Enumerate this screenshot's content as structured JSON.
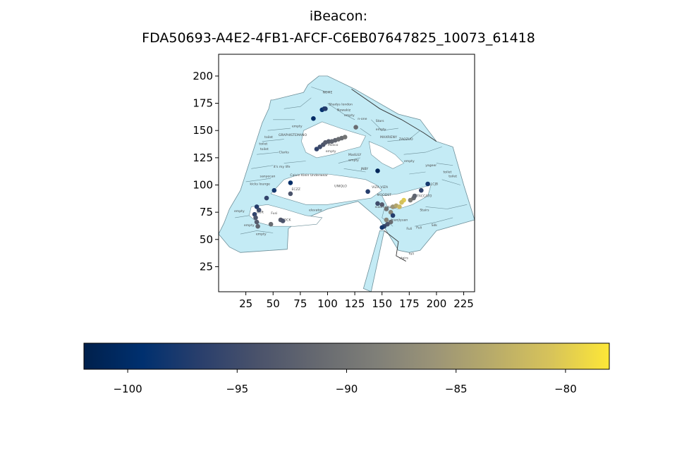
{
  "title_line1": "iBeacon:",
  "title_line2": "FDA50693-A4E2-4FB1-AFCF-C6EB07647825_10073_61418",
  "colors": {
    "floor_fill": "#c4ebf5",
    "floor_edge": "#6d8f99",
    "outline": "#333333",
    "colormap": [
      "#00204c",
      "#00306f",
      "#2a3f6c",
      "#4b536b",
      "#666970",
      "#7f7f78",
      "#9b9477",
      "#b8ab6a",
      "#d7c35a",
      "#fde737"
    ]
  },
  "chart_data": {
    "type": "scatter",
    "xlim": [
      0,
      235
    ],
    "ylim": [
      2,
      220
    ],
    "xticks": [
      25,
      50,
      75,
      100,
      125,
      150,
      175,
      200,
      225
    ],
    "yticks": [
      25,
      50,
      75,
      100,
      125,
      150,
      175,
      200
    ],
    "colorbar": {
      "min": -102,
      "max": -78,
      "ticks": [
        -100,
        -95,
        -90,
        -85,
        -80
      ]
    },
    "points": [
      {
        "x": 87,
        "y": 161,
        "v": -100
      },
      {
        "x": 95,
        "y": 169,
        "v": -99
      },
      {
        "x": 97,
        "y": 170,
        "v": -98
      },
      {
        "x": 98,
        "y": 170,
        "v": -97
      },
      {
        "x": 90,
        "y": 133,
        "v": -96
      },
      {
        "x": 93,
        "y": 135,
        "v": -95
      },
      {
        "x": 96,
        "y": 137,
        "v": -94
      },
      {
        "x": 98,
        "y": 139,
        "v": -93
      },
      {
        "x": 101,
        "y": 140,
        "v": -93
      },
      {
        "x": 104,
        "y": 140,
        "v": -92
      },
      {
        "x": 107,
        "y": 141,
        "v": -92
      },
      {
        "x": 110,
        "y": 142,
        "v": -91
      },
      {
        "x": 113,
        "y": 143,
        "v": -91
      },
      {
        "x": 116,
        "y": 144,
        "v": -90
      },
      {
        "x": 126,
        "y": 153,
        "v": -91
      },
      {
        "x": 146,
        "y": 113,
        "v": -101
      },
      {
        "x": 66,
        "y": 102,
        "v": -100
      },
      {
        "x": 51,
        "y": 95,
        "v": -98
      },
      {
        "x": 44,
        "y": 88,
        "v": -96
      },
      {
        "x": 66,
        "y": 92,
        "v": -94
      },
      {
        "x": 35,
        "y": 80,
        "v": -97
      },
      {
        "x": 37,
        "y": 77,
        "v": -95
      },
      {
        "x": 33,
        "y": 73,
        "v": -96
      },
      {
        "x": 34,
        "y": 70,
        "v": -94
      },
      {
        "x": 35,
        "y": 66,
        "v": -93
      },
      {
        "x": 36,
        "y": 62,
        "v": -92
      },
      {
        "x": 48,
        "y": 64,
        "v": -91
      },
      {
        "x": 57,
        "y": 68,
        "v": -93
      },
      {
        "x": 59,
        "y": 67,
        "v": -94
      },
      {
        "x": 137,
        "y": 94,
        "v": -97
      },
      {
        "x": 146,
        "y": 83,
        "v": -95
      },
      {
        "x": 150,
        "y": 82,
        "v": -93
      },
      {
        "x": 154,
        "y": 78,
        "v": -90
      },
      {
        "x": 158,
        "y": 75,
        "v": -88
      },
      {
        "x": 160,
        "y": 80,
        "v": -86
      },
      {
        "x": 163,
        "y": 81,
        "v": -84
      },
      {
        "x": 166,
        "y": 80,
        "v": -82
      },
      {
        "x": 170,
        "y": 86,
        "v": -80
      },
      {
        "x": 168,
        "y": 84,
        "v": -81
      },
      {
        "x": 176,
        "y": 86,
        "v": -89
      },
      {
        "x": 179,
        "y": 88,
        "v": -91
      },
      {
        "x": 180,
        "y": 90,
        "v": -92
      },
      {
        "x": 186,
        "y": 95,
        "v": -96
      },
      {
        "x": 192,
        "y": 101,
        "v": -98
      },
      {
        "x": 160,
        "y": 72,
        "v": -97
      },
      {
        "x": 158,
        "y": 66,
        "v": -91
      },
      {
        "x": 155,
        "y": 64,
        "v": -94
      },
      {
        "x": 152,
        "y": 62,
        "v": -96
      },
      {
        "x": 150,
        "y": 61,
        "v": -98
      },
      {
        "x": 154,
        "y": 68,
        "v": -88
      }
    ]
  },
  "room_labels": [
    {
      "text": "NOME",
      "x": 100,
      "y": 184
    },
    {
      "text": "Shadys london",
      "x": 112,
      "y": 173
    },
    {
      "text": "Newakiz",
      "x": 115,
      "y": 168
    },
    {
      "text": "empty",
      "x": 120,
      "y": 163
    },
    {
      "text": "n-one",
      "x": 132,
      "y": 160
    },
    {
      "text": "Stars",
      "x": 148,
      "y": 158
    },
    {
      "text": "empty",
      "x": 149,
      "y": 150
    },
    {
      "text": "MAXRIENY",
      "x": 156,
      "y": 143
    },
    {
      "text": "ZAOZUO",
      "x": 172,
      "y": 141
    },
    {
      "text": "GRAPHISTEMANO",
      "x": 68,
      "y": 145
    },
    {
      "text": "empty",
      "x": 72,
      "y": 153
    },
    {
      "text": "toilet",
      "x": 46,
      "y": 143
    },
    {
      "text": "toilet",
      "x": 41,
      "y": 137
    },
    {
      "text": "toilet",
      "x": 42,
      "y": 132
    },
    {
      "text": "Clarks",
      "x": 60,
      "y": 129
    },
    {
      "text": "Mosco",
      "x": 105,
      "y": 136
    },
    {
      "text": "empty",
      "x": 103,
      "y": 130
    },
    {
      "text": "MadLILY",
      "x": 125,
      "y": 127
    },
    {
      "text": "empty",
      "x": 124,
      "y": 122
    },
    {
      "text": "empty",
      "x": 175,
      "y": 121
    },
    {
      "text": "yageer",
      "x": 195,
      "y": 117
    },
    {
      "text": "JNBY",
      "x": 134,
      "y": 114
    },
    {
      "text": "toilet",
      "x": 210,
      "y": 111
    },
    {
      "text": "toilet",
      "x": 215,
      "y": 107
    },
    {
      "text": "it's my life",
      "x": 58,
      "y": 116
    },
    {
      "text": "sanyecan",
      "x": 45,
      "y": 107
    },
    {
      "text": "Calvin Klein Underwear",
      "x": 83,
      "y": 108
    },
    {
      "text": "kicks lounge",
      "x": 38,
      "y": 100
    },
    {
      "text": "UNIQLO",
      "x": 112,
      "y": 98
    },
    {
      "text": "VIZA VIZA",
      "x": 148,
      "y": 97
    },
    {
      "text": "ECZZ",
      "x": 71,
      "y": 95
    },
    {
      "text": "MOODST",
      "x": 152,
      "y": 90
    },
    {
      "text": "STACCATO",
      "x": 188,
      "y": 89
    },
    {
      "text": "LCJB",
      "x": 198,
      "y": 100
    },
    {
      "text": "xiaomuxiang",
      "x": 153,
      "y": 79
    },
    {
      "text": "elevator",
      "x": 89,
      "y": 76
    },
    {
      "text": "empty",
      "x": 19,
      "y": 75
    },
    {
      "text": "stuft",
      "x": 38,
      "y": 74
    },
    {
      "text": "Fusi",
      "x": 51,
      "y": 73
    },
    {
      "text": "Stairs",
      "x": 189,
      "y": 76
    },
    {
      "text": "DOCK",
      "x": 62,
      "y": 67
    },
    {
      "text": "empty",
      "x": 28,
      "y": 62
    },
    {
      "text": "bianjiyuan",
      "x": 166,
      "y": 67
    },
    {
      "text": "empty",
      "x": 39,
      "y": 54
    },
    {
      "text": "Fuli",
      "x": 175,
      "y": 59
    },
    {
      "text": "Fuli",
      "x": 184,
      "y": 60
    },
    {
      "text": "Silk",
      "x": 198,
      "y": 62
    },
    {
      "text": "fuli",
      "x": 177,
      "y": 36
    },
    {
      "text": "stairs",
      "x": 170,
      "y": 32
    }
  ]
}
